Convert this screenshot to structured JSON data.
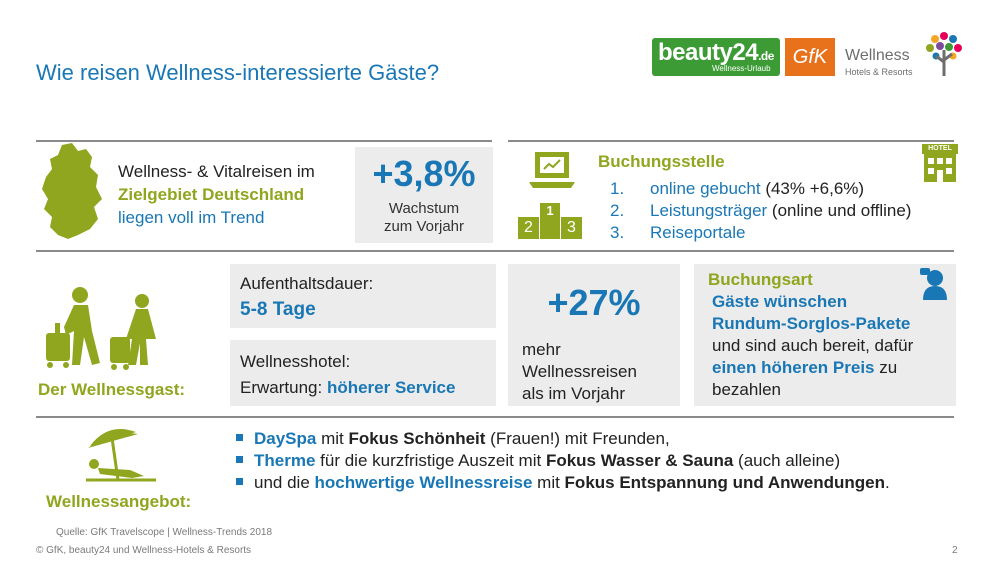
{
  "title": "Wie reisen Wellness-interessierte Gäste?",
  "logos": {
    "beauty24_main": "beauty24",
    "beauty24_suffix": ".de",
    "beauty24_sub": "Wellness-Urlaub",
    "gfk": "GfK",
    "wellness_main": "Wellness",
    "wellness_sub": "Hotels & Resorts"
  },
  "section1": {
    "line1": "Wellness- & Vitalreisen im",
    "line2": "Zielgebiet Deutschland",
    "line3": "liegen voll im Trend",
    "growth_value": "+3,8%",
    "growth_label_1": "Wachstum",
    "growth_label_2": "zum Vorjahr"
  },
  "booking_place": {
    "title": "Buchungsstelle",
    "hotel_label": "HOTEL",
    "podium_1": "1",
    "podium_2": "2",
    "podium_3": "3",
    "items": [
      {
        "num": "1.",
        "blue": "online gebucht",
        "rest": " (43% +6,6%)"
      },
      {
        "num": "2.",
        "blue": "Leistungsträger",
        "rest": " (online und offline)"
      },
      {
        "num": "3.",
        "blue": "Reiseportale",
        "rest": ""
      }
    ]
  },
  "guest": {
    "label": "Der Wellnessgast:",
    "stay_label": "Aufenthaltsdauer:",
    "stay_value": "5-8 Tage",
    "hotel_label": "Wellnesshotel:",
    "expect_prefix": "Erwartung: ",
    "expect_value": "höherer Service",
    "trips_value": "+27%",
    "trips_line1": "mehr",
    "trips_line2": "Wellnessreisen",
    "trips_line3": "als im Vorjahr"
  },
  "booking_type": {
    "title": "Buchungsart",
    "l1": "Gäste wünschen",
    "l2": "Rundum-Sorglos-Pakete",
    "l3": "und sind auch bereit, dafür",
    "l4_blue": "einen höheren Preis",
    "l4_rest": " zu",
    "l5": "bezahlen"
  },
  "offer": {
    "label": "Wellnessangebot:",
    "b1": {
      "a": "DaySpa",
      "b": " mit ",
      "c": "Fokus Schönheit",
      "d": " (Frauen!) mit Freunden,"
    },
    "b2": {
      "a": "Therme",
      "b": " für die kurzfristige Auszeit mit ",
      "c": "Fokus Wasser & Sauna",
      "d": " (auch alleine)"
    },
    "b3": {
      "a": "und die ",
      "b": "hochwertige Wellnessreise",
      "c": " mit ",
      "d": "Fokus Entspannung und Anwendungen",
      "e": "."
    }
  },
  "footer": {
    "source": "Quelle: GfK Travelscope | Wellness-Trends 2018",
    "copyright": "© GfK, beauty24 und Wellness-Hotels & Resorts",
    "page": "2"
  },
  "colors": {
    "blue": "#1a77b5",
    "olive": "#8fa61e",
    "gray": "#ececec",
    "rule": "#8a8a8a"
  }
}
